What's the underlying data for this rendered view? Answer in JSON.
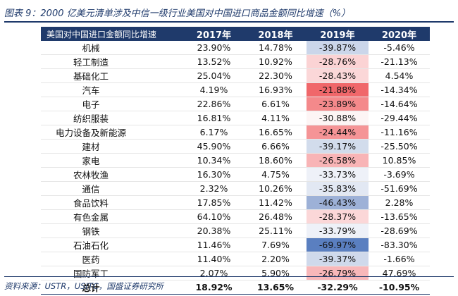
{
  "figure_title": "图表 9：2000 亿美元清单涉及中信一级行业美国对中国进口商品金额同比增速（%）",
  "table": {
    "header": [
      "美国对中国进口金额同比增速",
      "2017年",
      "2018年",
      "2019年",
      "2020年"
    ],
    "rows": [
      {
        "category": "机械",
        "y2017": "23.90%",
        "y2018": "14.78%",
        "y2019": "-39.87%",
        "y2020": "-5.46%",
        "heat": "#cbd6ea"
      },
      {
        "category": "轻工制造",
        "y2017": "13.52%",
        "y2018": "10.92%",
        "y2019": "-28.76%",
        "y2020": "-21.13%",
        "heat": "#fbd3d4"
      },
      {
        "category": "基础化工",
        "y2017": "25.04%",
        "y2018": "22.30%",
        "y2019": "-28.43%",
        "y2020": "4.54%",
        "heat": "#fbd7d8"
      },
      {
        "category": "汽车",
        "y2017": "4.19%",
        "y2018": "16.93%",
        "y2019": "-21.88%",
        "y2020": "-14.34%",
        "heat": "#f0676a"
      },
      {
        "category": "电子",
        "y2017": "22.86%",
        "y2018": "6.61%",
        "y2019": "-23.89%",
        "y2020": "-14.64%",
        "heat": "#f4898b"
      },
      {
        "category": "纺织服装",
        "y2017": "16.81%",
        "y2018": "4.11%",
        "y2019": "-30.88%",
        "y2020": "-29.44%",
        "heat": "#fdf5f5"
      },
      {
        "category": "电力设备及新能源",
        "y2017": "6.17%",
        "y2018": "16.65%",
        "y2019": "-24.44%",
        "y2020": "-11.16%",
        "heat": "#f59496"
      },
      {
        "category": "建材",
        "y2017": "45.90%",
        "y2018": "6.66%",
        "y2019": "-39.17%",
        "y2020": "-25.50%",
        "heat": "#d2dcec"
      },
      {
        "category": "家电",
        "y2017": "10.34%",
        "y2018": "18.60%",
        "y2019": "-26.58%",
        "y2020": "10.85%",
        "heat": "#f8b4b6"
      },
      {
        "category": "农林牧渔",
        "y2017": "16.30%",
        "y2018": "4.75%",
        "y2019": "-33.73%",
        "y2020": "-3.69%",
        "heat": "#eef1f8"
      },
      {
        "category": "通信",
        "y2017": "2.32%",
        "y2018": "10.26%",
        "y2019": "-35.83%",
        "y2020": "-51.69%",
        "heat": "#e2e8f3"
      },
      {
        "category": "食品饮料",
        "y2017": "17.85%",
        "y2018": "11.42%",
        "y2019": "-46.43%",
        "y2020": "2.28%",
        "heat": "#9db1d7"
      },
      {
        "category": "有色金属",
        "y2017": "64.10%",
        "y2018": "26.48%",
        "y2019": "-28.37%",
        "y2020": "-13.65%",
        "heat": "#fbd7d8"
      },
      {
        "category": "钢铁",
        "y2017": "20.38%",
        "y2018": "25.11%",
        "y2019": "-33.79%",
        "y2020": "-28.69%",
        "heat": "#eef1f8"
      },
      {
        "category": "石油石化",
        "y2017": "11.46%",
        "y2018": "7.69%",
        "y2019": "-69.97%",
        "y2020": "-83.30%",
        "heat": "#5a7fc0"
      },
      {
        "category": "医药",
        "y2017": "11.40%",
        "y2018": "2.20%",
        "y2019": "-39.37%",
        "y2020": "-1.66%",
        "heat": "#cfd9eb"
      },
      {
        "category": "国防军工",
        "y2017": "2.07%",
        "y2018": "5.90%",
        "y2019": "-26.79%",
        "y2020": "47.69%",
        "heat": "#f8b7b9"
      },
      {
        "category": "总计",
        "y2017": "18.92%",
        "y2018": "13.65%",
        "y2019": "-32.29%",
        "y2020": "-10.95%",
        "heat": "#ffffff",
        "total": true
      }
    ]
  },
  "source": "资料来源：USTR，USITC，国盛证券研究所",
  "colors": {
    "header_bg": "#1f3a6b",
    "header_text": "#ffffff",
    "title": "#1f3a6b"
  }
}
